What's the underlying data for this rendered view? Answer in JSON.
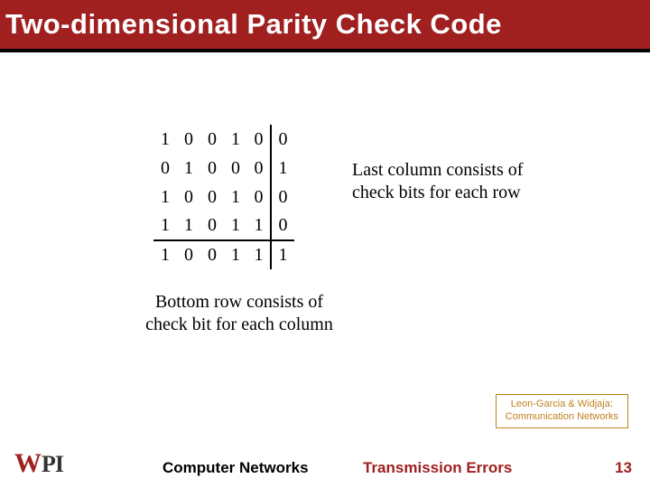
{
  "title": "Two-dimensional Parity Check Code",
  "table": {
    "rows": [
      [
        "1",
        "0",
        "0",
        "1",
        "0",
        "0"
      ],
      [
        "0",
        "1",
        "0",
        "0",
        "0",
        "1"
      ],
      [
        "1",
        "0",
        "0",
        "1",
        "0",
        "0"
      ],
      [
        "1",
        "1",
        "0",
        "1",
        "1",
        "0"
      ],
      [
        "1",
        "0",
        "0",
        "1",
        "1",
        "1"
      ]
    ],
    "data_cols": 5,
    "data_rows": 4
  },
  "side_caption_l1": "Last column consists of",
  "side_caption_l2": "check bits for each row",
  "bottom_caption_l1": "Bottom row consists of",
  "bottom_caption_l2": "check bit for each column",
  "attribution_l1": "Leon-Garcia & Widjaja:",
  "attribution_l2": "Communication Networks",
  "footer_center": "Computer Networks",
  "footer_right": "Transmission Errors",
  "page_number": "13",
  "logo_w": "W",
  "logo_pi": "PI",
  "colors": {
    "brand": "#a02020",
    "attr_border": "#c08020"
  }
}
